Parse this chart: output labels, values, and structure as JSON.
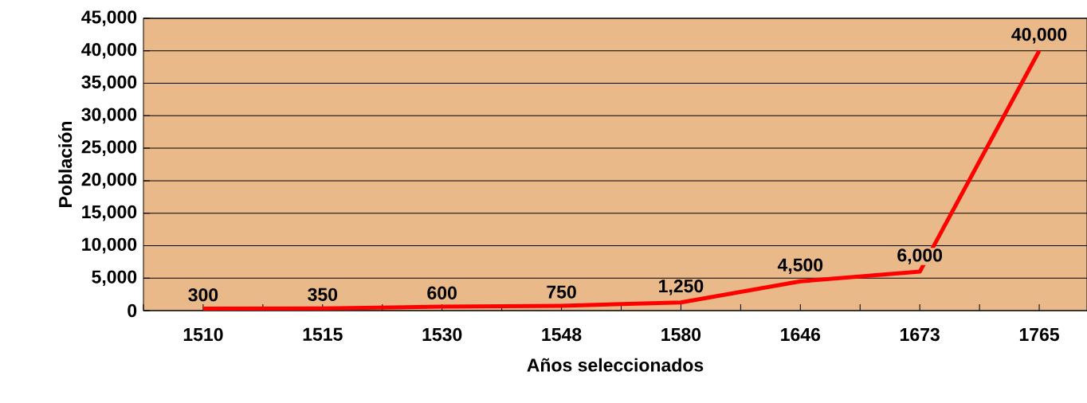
{
  "chart_data": {
    "type": "line",
    "xlabel": "Años seleccionados",
    "ylabel": "Población",
    "categories": [
      "1510",
      "1515",
      "1530",
      "1548",
      "1580",
      "1646",
      "1673",
      "1765"
    ],
    "series": [
      {
        "color": "#ff0000",
        "values": [
          300,
          350,
          600,
          750,
          1250,
          4500,
          6000,
          40000
        ],
        "value_labels": [
          "300",
          "350",
          "600",
          "750",
          "1,250",
          "4,500",
          "6,000",
          "40,000"
        ]
      }
    ],
    "ylim": [
      0,
      45000
    ],
    "yticks": [
      0,
      {
        "value": 5000,
        "label": "5,000"
      },
      {
        "value": 10000,
        "label": "10,000"
      },
      {
        "value": 15000,
        "label": "15,000"
      },
      {
        "value": 20000,
        "label": "20,000"
      },
      {
        "value": 25000,
        "label": "25,000"
      },
      {
        "value": 30000,
        "label": "30,000"
      },
      {
        "value": 35000,
        "label": "35,000"
      },
      {
        "value": 40000,
        "label": "40,000"
      },
      {
        "value": 45000,
        "label": "45,000"
      }
    ],
    "grid": "y"
  }
}
